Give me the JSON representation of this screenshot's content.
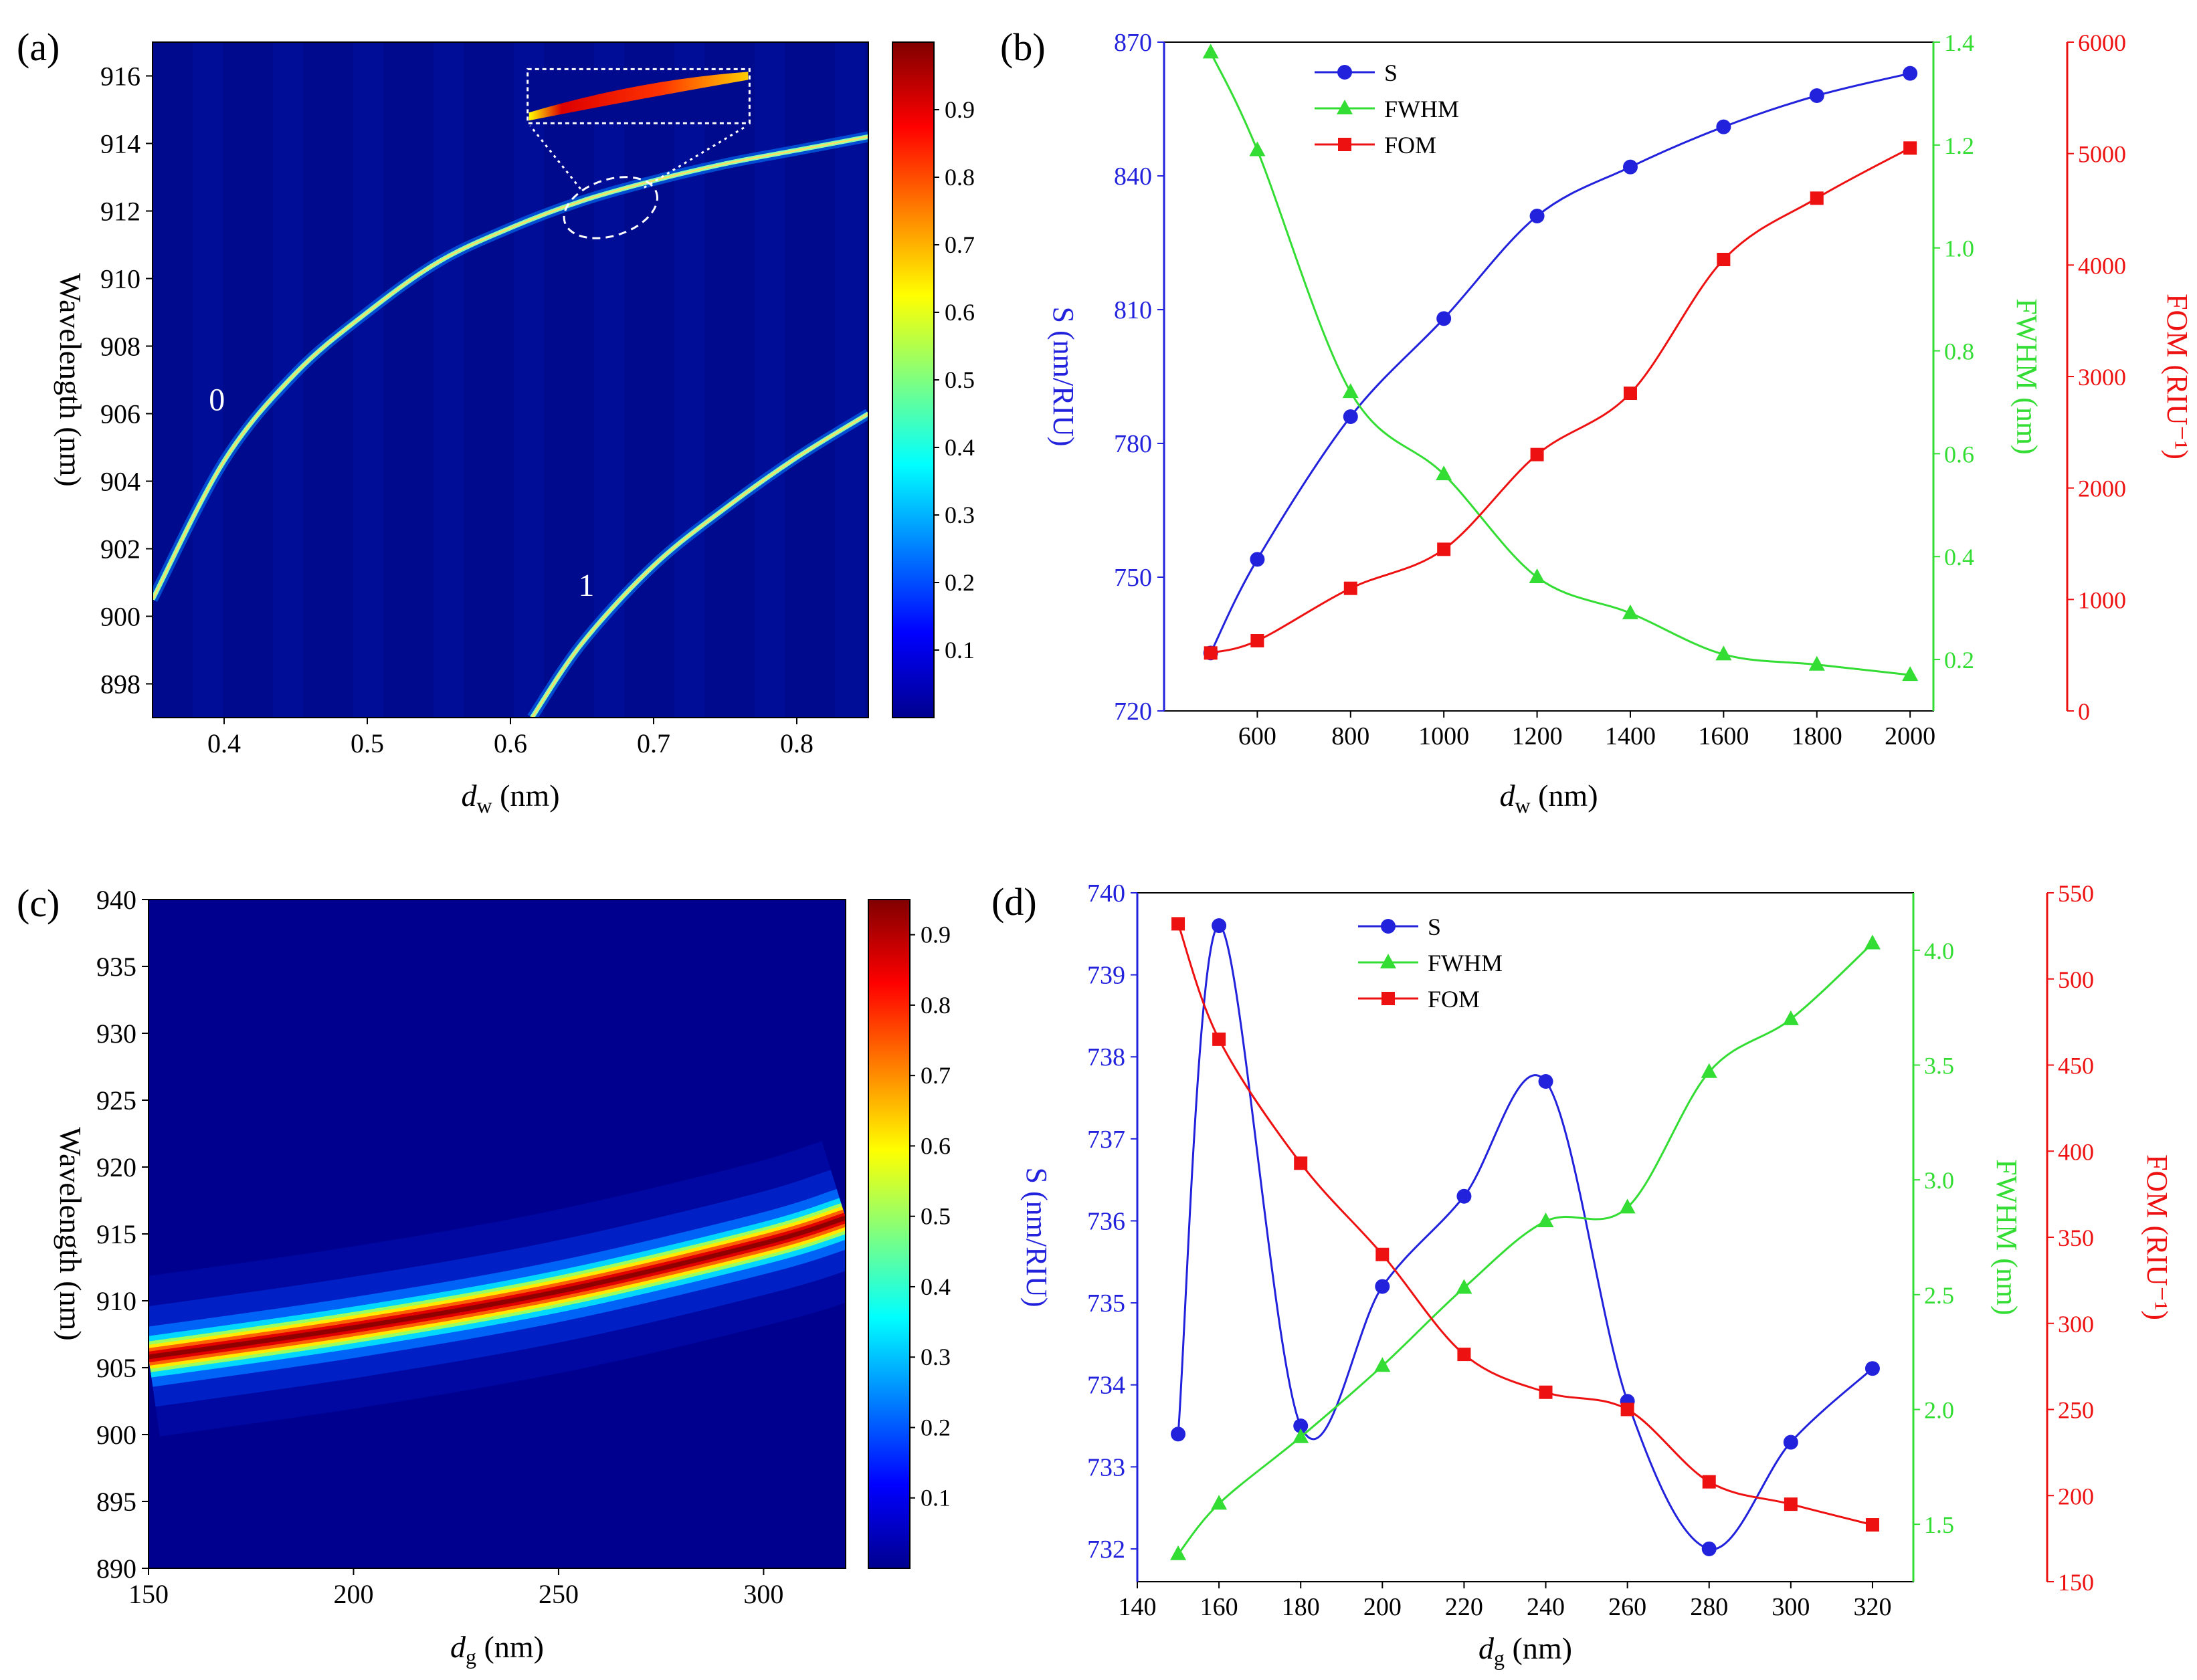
{
  "figure": {
    "panels": [
      "(a)",
      "(b)",
      "(c)",
      "(d)"
    ]
  },
  "chart_data": [
    {
      "panel": "(a)",
      "type": "heatmap",
      "xlabel": {
        "main": "d",
        "sub": "w",
        "tail": " (nm)"
      },
      "ylabel": "Wavelength (nm)",
      "xlim": [
        0.35,
        0.85
      ],
      "ylim": [
        897,
        917
      ],
      "x_ticks": [
        0.4,
        0.5,
        0.6,
        0.7,
        0.8
      ],
      "x_tick_labels": [
        "0.4",
        "0.5",
        "0.6",
        "0.7",
        "0.8"
      ],
      "y_ticks": [
        898,
        900,
        902,
        904,
        906,
        908,
        910,
        912,
        914,
        916
      ],
      "y_tick_labels": [
        "898",
        "900",
        "902",
        "904",
        "906",
        "908",
        "910",
        "912",
        "914",
        "916"
      ],
      "colorbar": {
        "range": [
          0,
          1
        ],
        "ticks": [
          0.1,
          0.2,
          0.3,
          0.4,
          0.5,
          0.6,
          0.7,
          0.8,
          0.9
        ],
        "tick_labels": [
          "0.1",
          "0.2",
          "0.3",
          "0.4",
          "0.5",
          "0.6",
          "0.7",
          "0.8",
          "0.9"
        ]
      },
      "modes": [
        {
          "name": "0",
          "x": [
            0.35,
            0.4,
            0.45,
            0.5,
            0.55,
            0.6,
            0.65,
            0.7,
            0.75,
            0.8,
            0.85
          ],
          "y": [
            900.5,
            904.6,
            907.2,
            909.0,
            910.5,
            911.5,
            912.3,
            912.9,
            913.4,
            913.8,
            914.2
          ]
        },
        {
          "name": "1",
          "x": [
            0.615,
            0.65,
            0.7,
            0.75,
            0.8,
            0.85
          ],
          "y": [
            897.0,
            899.2,
            901.5,
            903.2,
            904.7,
            906.0
          ]
        }
      ],
      "mode_labels": [
        "0",
        "1"
      ]
    },
    {
      "panel": "(b)",
      "type": "line",
      "xlabel": {
        "main": "d",
        "sub": "w",
        "tail": " (nm)"
      },
      "xlim": [
        400,
        2050
      ],
      "x_ticks": [
        600,
        800,
        1000,
        1200,
        1400,
        1600,
        1800,
        2000
      ],
      "x_tick_labels": [
        "600",
        "800",
        "1000",
        "1200",
        "1400",
        "1600",
        "1800",
        "2000"
      ],
      "x": [
        500,
        600,
        800,
        1000,
        1200,
        1400,
        1600,
        1800,
        2000
      ],
      "axes": [
        {
          "side": "left",
          "label": "S (nm/RIU)",
          "color": "#2222dd",
          "lim": [
            720,
            870
          ],
          "ticks": [
            720,
            750,
            780,
            810,
            840,
            870
          ],
          "tick_labels": [
            "720",
            "750",
            "780",
            "810",
            "840",
            "870"
          ]
        },
        {
          "side": "right",
          "label": "FWHM (nm)",
          "color": "#33dd33",
          "lim": [
            0.1,
            1.4
          ],
          "ticks": [
            0.2,
            0.4,
            0.6,
            0.8,
            1.0,
            1.2,
            1.4
          ],
          "tick_labels": [
            "0.2",
            "0.4",
            "0.6",
            "0.8",
            "1.0",
            "1.2",
            "1.4"
          ]
        },
        {
          "side": "right-outer",
          "label": "FOM (RIU⁻¹)",
          "color": "#ee1111",
          "lim": [
            0,
            6000
          ],
          "ticks": [
            0,
            1000,
            2000,
            3000,
            4000,
            5000,
            6000
          ],
          "tick_labels": [
            "0",
            "1000",
            "2000",
            "3000",
            "4000",
            "5000",
            "6000"
          ]
        }
      ],
      "series": [
        {
          "name": "S",
          "axis": 0,
          "marker": "circle",
          "color": "#2222dd",
          "values": [
            733,
            754,
            786,
            808,
            831,
            842,
            851,
            858,
            863
          ]
        },
        {
          "name": "FWHM",
          "axis": 1,
          "marker": "triangle",
          "color": "#33dd33",
          "values": [
            1.38,
            1.19,
            0.72,
            0.56,
            0.36,
            0.29,
            0.21,
            0.19,
            0.17
          ]
        },
        {
          "name": "FOM",
          "axis": 2,
          "marker": "square",
          "color": "#ee1111",
          "values": [
            520,
            630,
            1100,
            1450,
            2300,
            2850,
            4050,
            4600,
            5050
          ]
        }
      ],
      "legend": [
        "S",
        "FWHM",
        "FOM"
      ]
    },
    {
      "panel": "(c)",
      "type": "heatmap",
      "xlabel": {
        "main": "d",
        "sub": "g",
        "tail": " (nm)"
      },
      "ylabel": "Wavelength (nm)",
      "xlim": [
        150,
        320
      ],
      "ylim": [
        890,
        940
      ],
      "x_ticks": [
        150,
        200,
        250,
        300
      ],
      "x_tick_labels": [
        "150",
        "200",
        "250",
        "300"
      ],
      "y_ticks": [
        890,
        895,
        900,
        905,
        910,
        915,
        920,
        925,
        930,
        935,
        940
      ],
      "y_tick_labels": [
        "890",
        "895",
        "900",
        "905",
        "910",
        "915",
        "920",
        "925",
        "930",
        "935",
        "940"
      ],
      "colorbar": {
        "range": [
          0,
          0.95
        ],
        "ticks": [
          0.1,
          0.2,
          0.3,
          0.4,
          0.5,
          0.6,
          0.7,
          0.8,
          0.9
        ],
        "tick_labels": [
          "0.1",
          "0.2",
          "0.3",
          "0.4",
          "0.5",
          "0.6",
          "0.7",
          "0.8",
          "0.9"
        ]
      },
      "ridge": {
        "x": [
          150,
          200,
          250,
          300,
          320
        ],
        "y": [
          905.8,
          908.0,
          910.7,
          914.3,
          916.2
        ]
      }
    },
    {
      "panel": "(d)",
      "type": "line",
      "xlabel": {
        "main": "d",
        "sub": "g",
        "tail": " (nm)"
      },
      "xlim": [
        140,
        330
      ],
      "x_ticks": [
        140,
        160,
        180,
        200,
        220,
        240,
        260,
        280,
        300,
        320
      ],
      "x_tick_labels": [
        "140",
        "160",
        "180",
        "200",
        "220",
        "240",
        "260",
        "280",
        "300",
        "320"
      ],
      "x": [
        150,
        160,
        180,
        200,
        220,
        240,
        260,
        280,
        300,
        320
      ],
      "axes": [
        {
          "side": "left",
          "label": "S (nm/RIU)",
          "color": "#2222dd",
          "lim": [
            731.6,
            740
          ],
          "ticks": [
            732,
            733,
            734,
            735,
            736,
            737,
            738,
            739,
            740
          ],
          "tick_labels": [
            "732",
            "733",
            "734",
            "735",
            "736",
            "737",
            "738",
            "739",
            "740"
          ]
        },
        {
          "side": "right",
          "label": "FWHM (nm)",
          "color": "#33dd33",
          "lim": [
            1.25,
            4.25
          ],
          "ticks": [
            1.5,
            2.0,
            2.5,
            3.0,
            3.5,
            4.0
          ],
          "tick_labels": [
            "1.5",
            "2.0",
            "2.5",
            "3.0",
            "3.5",
            "4.0"
          ]
        },
        {
          "side": "right-outer",
          "label": "FOM (RIU⁻¹)",
          "color": "#ee1111",
          "lim": [
            150,
            550
          ],
          "ticks": [
            150,
            200,
            250,
            300,
            350,
            400,
            450,
            500,
            550
          ],
          "tick_labels": [
            "150",
            "200",
            "250",
            "300",
            "350",
            "400",
            "450",
            "500",
            "550"
          ]
        }
      ],
      "series": [
        {
          "name": "S",
          "axis": 0,
          "marker": "circle",
          "color": "#2222dd",
          "values": [
            733.4,
            739.6,
            733.5,
            735.2,
            736.3,
            737.7,
            733.8,
            732.0,
            733.3,
            734.2
          ]
        },
        {
          "name": "FWHM",
          "axis": 1,
          "marker": "triangle",
          "color": "#33dd33",
          "values": [
            1.37,
            1.59,
            1.88,
            2.19,
            2.53,
            2.82,
            2.88,
            3.47,
            3.7,
            4.03
          ]
        },
        {
          "name": "FOM",
          "axis": 2,
          "marker": "square",
          "color": "#ee1111",
          "values": [
            532,
            465,
            393,
            340,
            282,
            260,
            250,
            208,
            195,
            183
          ]
        }
      ],
      "legend": [
        "S",
        "FWHM",
        "FOM"
      ]
    }
  ]
}
